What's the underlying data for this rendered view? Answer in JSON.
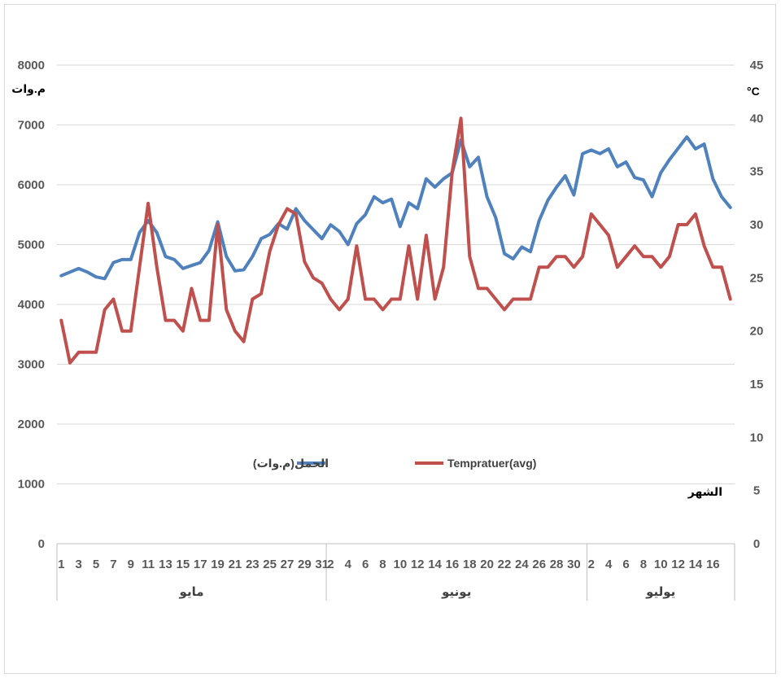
{
  "chart_data": {
    "type": "line",
    "x_group_labels": [
      "مايو",
      "يونيو",
      "يوليو"
    ],
    "x_tick_labels": {
      "may": [
        "1",
        "3",
        "5",
        "7",
        "9",
        "11",
        "13",
        "15",
        "17",
        "19",
        "21",
        "23",
        "25",
        "27",
        "29",
        "31"
      ],
      "june": [
        "2",
        "4",
        "6",
        "8",
        "10",
        "12",
        "14",
        "16",
        "18",
        "20",
        "22",
        "24",
        "26",
        "28",
        "30"
      ],
      "july": [
        "2",
        "4",
        "6",
        "8",
        "10",
        "12",
        "14",
        "16"
      ]
    },
    "y_left": {
      "unit_label": "م.وات",
      "ticks": [
        "0",
        "1000",
        "2000",
        "3000",
        "4000",
        "5000",
        "6000",
        "7000",
        "8000"
      ],
      "ylim": [
        0,
        8000
      ]
    },
    "y_right": {
      "unit_label": "°C",
      "ticks": [
        "0",
        "5",
        "10",
        "15",
        "20",
        "25",
        "30",
        "35",
        "40",
        "45"
      ],
      "ylim": [
        0,
        45
      ]
    },
    "x_axis_label": "الشهر",
    "grid": "horizontal",
    "legend_position": "center",
    "series": [
      {
        "name": "الحمل(م.وات)",
        "axis": "left",
        "color": "#4f81bd",
        "values": [
          4480,
          4540,
          4600,
          4540,
          4460,
          4430,
          4700,
          4750,
          4750,
          5200,
          5400,
          5200,
          4800,
          4750,
          4600,
          4650,
          4700,
          4900,
          5380,
          4800,
          4560,
          4580,
          4800,
          5100,
          5170,
          5350,
          5260,
          5600,
          5400,
          5250,
          5100,
          5330,
          5220,
          5000,
          5350,
          5500,
          5800,
          5700,
          5760,
          5300,
          5700,
          5600,
          6100,
          5960,
          6100,
          6200,
          6750,
          6300,
          6460,
          5800,
          5450,
          4850,
          4760,
          4960,
          4880,
          5400,
          5740,
          5960,
          6150,
          5830,
          6520,
          6580,
          6520,
          6600,
          6300,
          6380,
          6120,
          6080,
          5800,
          6200,
          6420,
          6610,
          6800,
          6600,
          6680,
          6100,
          5800,
          5620
        ]
      },
      {
        "name": "Tempratuer(avg)",
        "axis": "right",
        "color": "#c0504d",
        "values": [
          21,
          17,
          18,
          18,
          18,
          22,
          23,
          20,
          20,
          26,
          32,
          26,
          21,
          21,
          20,
          24,
          21,
          21,
          30,
          22,
          20,
          19,
          23,
          23.5,
          27.5,
          30,
          31.5,
          31,
          26.5,
          25,
          24.5,
          23,
          22,
          23,
          28,
          23,
          23,
          22,
          23,
          23,
          28,
          23,
          29,
          23,
          26,
          35,
          40,
          27,
          24,
          24,
          23,
          22,
          23,
          23,
          23,
          26,
          26,
          27,
          27,
          26,
          27,
          31,
          30,
          29,
          26,
          27,
          28,
          27,
          27,
          26,
          27,
          30,
          30,
          31,
          28,
          26,
          26,
          23
        ]
      }
    ]
  }
}
